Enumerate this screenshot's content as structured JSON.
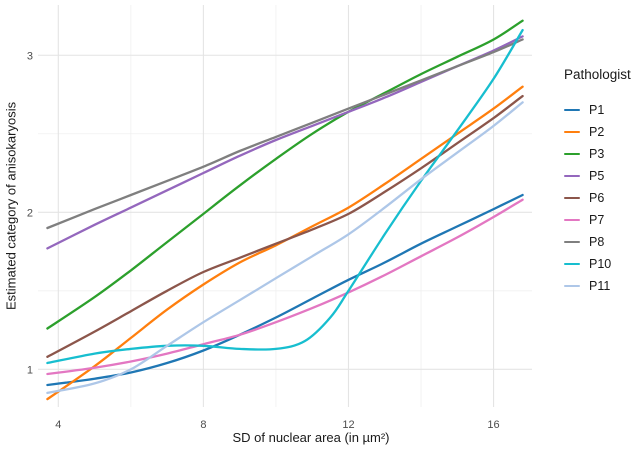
{
  "figure": {
    "background_color": "#ffffff",
    "grid_major_color": "#e4e4e4",
    "grid_minor_color": "#f0f0f0",
    "tick_label_color": "#4d4d4d",
    "text_color": "#1a1a1a"
  },
  "chart_data": {
    "type": "line",
    "title": "",
    "xlabel": "SD of nuclear area (in µm²)",
    "ylabel": "Estimated category of anisokaryosis",
    "legend_title": "Pathologist",
    "legend_position": "right",
    "grid": "on",
    "xlim": [
      3.44,
      17.06
    ],
    "ylim": [
      0.76,
      3.32
    ],
    "x_ticks": [
      4,
      8,
      12,
      16
    ],
    "y_ticks": [
      1,
      2,
      3
    ],
    "x_minor_gridlines": [
      6,
      10,
      14
    ],
    "y_minor_gridlines": [
      1.5,
      2.5
    ],
    "series": [
      {
        "name": "P1",
        "color": "#1f77b4",
        "points": [
          [
            3.7,
            0.9
          ],
          [
            5,
            0.94
          ],
          [
            6,
            0.98
          ],
          [
            7,
            1.04
          ],
          [
            8,
            1.12
          ],
          [
            9,
            1.22
          ],
          [
            10,
            1.33
          ],
          [
            11,
            1.45
          ],
          [
            12,
            1.57
          ],
          [
            13,
            1.68
          ],
          [
            14,
            1.8
          ],
          [
            15,
            1.91
          ],
          [
            16,
            2.02
          ],
          [
            16.8,
            2.11
          ]
        ]
      },
      {
        "name": "P2",
        "color": "#ff7f0e",
        "points": [
          [
            3.7,
            0.81
          ],
          [
            5,
            1.02
          ],
          [
            6,
            1.2
          ],
          [
            7,
            1.38
          ],
          [
            8,
            1.54
          ],
          [
            9,
            1.68
          ],
          [
            10,
            1.79
          ],
          [
            11,
            1.91
          ],
          [
            12,
            2.03
          ],
          [
            13,
            2.18
          ],
          [
            14,
            2.34
          ],
          [
            15,
            2.5
          ],
          [
            16,
            2.66
          ],
          [
            16.8,
            2.8
          ]
        ]
      },
      {
        "name": "P3",
        "color": "#2ca02c",
        "points": [
          [
            3.7,
            1.26
          ],
          [
            5,
            1.46
          ],
          [
            6,
            1.63
          ],
          [
            7,
            1.81
          ],
          [
            8,
            1.99
          ],
          [
            9,
            2.17
          ],
          [
            10,
            2.34
          ],
          [
            11,
            2.5
          ],
          [
            12,
            2.64
          ],
          [
            13,
            2.76
          ],
          [
            14,
            2.88
          ],
          [
            15,
            2.99
          ],
          [
            16,
            3.1
          ],
          [
            16.8,
            3.22
          ]
        ]
      },
      {
        "name": "P5",
        "color": "#9467bd",
        "points": [
          [
            3.7,
            1.77
          ],
          [
            5,
            1.92
          ],
          [
            6,
            2.03
          ],
          [
            7,
            2.14
          ],
          [
            8,
            2.25
          ],
          [
            9,
            2.36
          ],
          [
            10,
            2.46
          ],
          [
            11,
            2.55
          ],
          [
            12,
            2.64
          ],
          [
            13,
            2.73
          ],
          [
            14,
            2.83
          ],
          [
            15,
            2.93
          ],
          [
            16,
            3.03
          ],
          [
            16.8,
            3.12
          ]
        ]
      },
      {
        "name": "P6",
        "color": "#8c564b",
        "points": [
          [
            3.7,
            1.08
          ],
          [
            5,
            1.24
          ],
          [
            6,
            1.37
          ],
          [
            7,
            1.5
          ],
          [
            8,
            1.62
          ],
          [
            9,
            1.71
          ],
          [
            10,
            1.8
          ],
          [
            11,
            1.89
          ],
          [
            12,
            1.99
          ],
          [
            13,
            2.13
          ],
          [
            14,
            2.28
          ],
          [
            15,
            2.44
          ],
          [
            16,
            2.6
          ],
          [
            16.8,
            2.74
          ]
        ]
      },
      {
        "name": "P7",
        "color": "#e377c2",
        "points": [
          [
            3.7,
            0.97
          ],
          [
            5,
            1.01
          ],
          [
            6,
            1.05
          ],
          [
            7,
            1.1
          ],
          [
            8,
            1.16
          ],
          [
            9,
            1.22
          ],
          [
            10,
            1.3
          ],
          [
            11,
            1.39
          ],
          [
            12,
            1.49
          ],
          [
            13,
            1.6
          ],
          [
            14,
            1.72
          ],
          [
            15,
            1.84
          ],
          [
            16,
            1.97
          ],
          [
            16.8,
            2.08
          ]
        ]
      },
      {
        "name": "P8",
        "color": "#7f7f7f",
        "points": [
          [
            3.7,
            1.9
          ],
          [
            5,
            2.02
          ],
          [
            6,
            2.11
          ],
          [
            7,
            2.2
          ],
          [
            8,
            2.29
          ],
          [
            9,
            2.39
          ],
          [
            10,
            2.48
          ],
          [
            11,
            2.57
          ],
          [
            12,
            2.66
          ],
          [
            13,
            2.75
          ],
          [
            14,
            2.84
          ],
          [
            15,
            2.93
          ],
          [
            16,
            3.02
          ],
          [
            16.8,
            3.1
          ]
        ]
      },
      {
        "name": "P10",
        "color": "#17becf",
        "points": [
          [
            3.7,
            1.04
          ],
          [
            5,
            1.1
          ],
          [
            6,
            1.13
          ],
          [
            7,
            1.15
          ],
          [
            8,
            1.15
          ],
          [
            9,
            1.13
          ],
          [
            10,
            1.13
          ],
          [
            10.8,
            1.18
          ],
          [
            11.5,
            1.33
          ],
          [
            12,
            1.5
          ],
          [
            13,
            1.86
          ],
          [
            14,
            2.2
          ],
          [
            15,
            2.52
          ],
          [
            16,
            2.85
          ],
          [
            16.8,
            3.16
          ]
        ]
      },
      {
        "name": "P11",
        "color": "#aec7e8",
        "points": [
          [
            3.7,
            0.85
          ],
          [
            5,
            0.91
          ],
          [
            6,
            1.0
          ],
          [
            7,
            1.15
          ],
          [
            8,
            1.3
          ],
          [
            9,
            1.44
          ],
          [
            10,
            1.58
          ],
          [
            11,
            1.72
          ],
          [
            12,
            1.86
          ],
          [
            13,
            2.03
          ],
          [
            14,
            2.21
          ],
          [
            15,
            2.38
          ],
          [
            16,
            2.55
          ],
          [
            16.8,
            2.7
          ]
        ]
      }
    ]
  }
}
